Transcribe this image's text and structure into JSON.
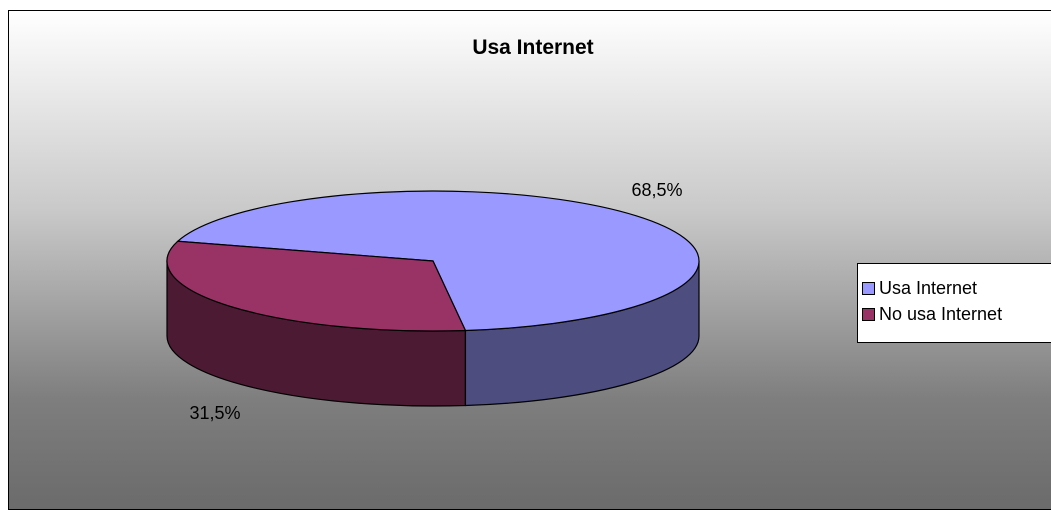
{
  "chart_data": {
    "type": "pie",
    "title": "Usa Internet",
    "three_d": true,
    "categories": [
      "Usa Internet",
      "No usa Internet"
    ],
    "values": [
      68.5,
      31.5
    ],
    "data_labels": [
      "68,5%",
      "31,5%"
    ],
    "colors": [
      "#9999ff",
      "#993366"
    ],
    "side_colors": [
      "#4d4d80",
      "#4d1a33"
    ],
    "legend_placement": "right"
  }
}
